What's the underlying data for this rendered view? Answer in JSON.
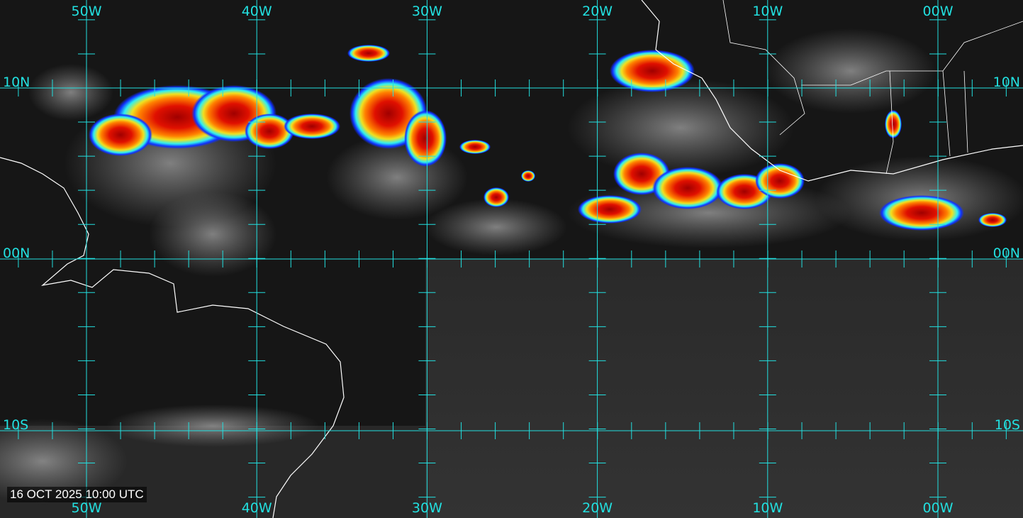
{
  "map": {
    "timestamp": "16 OCT 2025 10:00 UTC",
    "longitude_labels": [
      "50W",
      "40W",
      "30W",
      "20W",
      "10W",
      "00W"
    ],
    "latitude_labels": [
      "10N",
      "00N",
      "10S"
    ],
    "grid_color": "#22e0e0",
    "coastline_color": "#ffffff",
    "colors": {
      "background": "#161616",
      "cloud_gray": "#8a8a8a",
      "convection_blue": "#1030ff",
      "convection_cyan": "#30f0f0",
      "convection_yellow": "#f0e020",
      "convection_red": "#ff2000",
      "convection_darkred": "#a00000"
    }
  }
}
